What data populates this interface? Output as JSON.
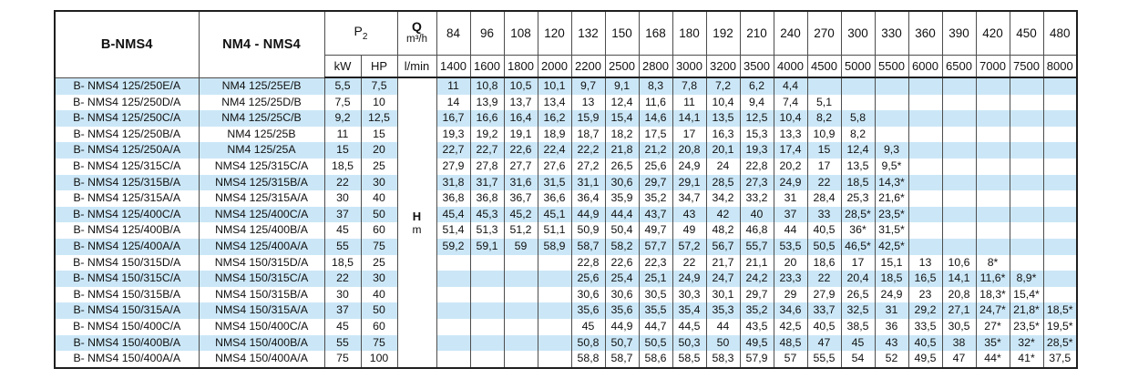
{
  "header": {
    "col_b_nms4": "B-NMS4",
    "col_nm4_nms4": "NM4 - NMS4",
    "p2_label": "P",
    "p2_sub": "2",
    "kw": "kW",
    "hp": "HP",
    "q_label": "Q",
    "q_unit": "m³/h",
    "lmin": "l/min",
    "flow_m3h": [
      "84",
      "96",
      "108",
      "120",
      "132",
      "150",
      "168",
      "180",
      "192",
      "210",
      "240",
      "270",
      "300",
      "330",
      "360",
      "390",
      "420",
      "450",
      "480"
    ],
    "flow_lmin": [
      "1400",
      "1600",
      "1800",
      "2000",
      "2200",
      "2500",
      "2800",
      "3000",
      "3200",
      "3500",
      "4000",
      "4500",
      "5000",
      "5500",
      "6000",
      "6500",
      "7000",
      "7500",
      "8000"
    ]
  },
  "body": {
    "head_label": "H",
    "head_unit": "m",
    "rows": [
      {
        "b": "B- NMS4 125/250E/A",
        "n": "NM4 125/25E/B",
        "kw": "5,5",
        "hp": "7,5",
        "v": [
          "11",
          "10,8",
          "10,5",
          "10,1",
          "9,7",
          "9,1",
          "8,3",
          "7,8",
          "7,2",
          "6,2",
          "4,4",
          "",
          "",
          "",
          "",
          "",
          "",
          "",
          ""
        ]
      },
      {
        "b": "B- NMS4 125/250D/A",
        "n": "NM4 125/25D/B",
        "kw": "7,5",
        "hp": "10",
        "v": [
          "14",
          "13,9",
          "13,7",
          "13,4",
          "13",
          "12,4",
          "11,6",
          "11",
          "10,4",
          "9,4",
          "7,4",
          "5,1",
          "",
          "",
          "",
          "",
          "",
          "",
          ""
        ]
      },
      {
        "b": "B- NMS4 125/250C/A",
        "n": "NM4 125/25C/B",
        "kw": "9,2",
        "hp": "12,5",
        "v": [
          "16,7",
          "16,6",
          "16,4",
          "16,2",
          "15,9",
          "15,4",
          "14,6",
          "14,1",
          "13,5",
          "12,5",
          "10,4",
          "8,2",
          "5,8",
          "",
          "",
          "",
          "",
          "",
          ""
        ]
      },
      {
        "b": "B- NMS4 125/250B/A",
        "n": "NM4 125/25B",
        "kw": "11",
        "hp": "15",
        "v": [
          "19,3",
          "19,2",
          "19,1",
          "18,9",
          "18,7",
          "18,2",
          "17,5",
          "17",
          "16,3",
          "15,3",
          "13,3",
          "10,9",
          "8,2",
          "",
          "",
          "",
          "",
          "",
          ""
        ]
      },
      {
        "b": "B- NMS4 125/250A/A",
        "n": "NM4 125/25A",
        "kw": "15",
        "hp": "20",
        "v": [
          "22,7",
          "22,7",
          "22,6",
          "22,4",
          "22,2",
          "21,8",
          "21,2",
          "20,8",
          "20,1",
          "19,3",
          "17,4",
          "15",
          "12,4",
          "9,3",
          "",
          "",
          "",
          "",
          ""
        ]
      },
      {
        "b": "B- NMS4 125/315C/A",
        "n": "NMS4 125/315C/A",
        "kw": "18,5",
        "hp": "25",
        "v": [
          "27,9",
          "27,8",
          "27,7",
          "27,6",
          "27,2",
          "26,5",
          "25,6",
          "24,9",
          "24",
          "22,8",
          "20,2",
          "17",
          "13,5",
          "9,5*",
          "",
          "",
          "",
          "",
          ""
        ]
      },
      {
        "b": "B- NMS4 125/315B/A",
        "n": "NMS4 125/315B/A",
        "kw": "22",
        "hp": "30",
        "v": [
          "31,8",
          "31,7",
          "31,6",
          "31,5",
          "31,1",
          "30,6",
          "29,7",
          "29,1",
          "28,5",
          "27,3",
          "24,9",
          "22",
          "18,5",
          "14,3*",
          "",
          "",
          "",
          "",
          ""
        ]
      },
      {
        "b": "B- NMS4 125/315A/A",
        "n": "NMS4 125/315A/A",
        "kw": "30",
        "hp": "40",
        "v": [
          "36,8",
          "36,8",
          "36,7",
          "36,6",
          "36,4",
          "35,9",
          "35,2",
          "34,7",
          "34,2",
          "33,2",
          "31",
          "28,4",
          "25,3",
          "21,6*",
          "",
          "",
          "",
          "",
          ""
        ]
      },
      {
        "b": "B- NMS4 125/400C/A",
        "n": "NMS4 125/400C/A",
        "kw": "37",
        "hp": "50",
        "v": [
          "45,4",
          "45,3",
          "45,2",
          "45,1",
          "44,9",
          "44,4",
          "43,7",
          "43",
          "42",
          "40",
          "37",
          "33",
          "28,5*",
          "23,5*",
          "",
          "",
          "",
          "",
          ""
        ]
      },
      {
        "b": "B- NMS4 125/400B/A",
        "n": "NMS4 125/400B/A",
        "kw": "45",
        "hp": "60",
        "v": [
          "51,4",
          "51,3",
          "51,2",
          "51,1",
          "50,9",
          "50,4",
          "49,7",
          "49",
          "48,2",
          "46,8",
          "44",
          "40,5",
          "36*",
          "31,5*",
          "",
          "",
          "",
          "",
          ""
        ]
      },
      {
        "b": "B- NMS4 125/400A/A",
        "n": "NMS4 125/400A/A",
        "kw": "55",
        "hp": "75",
        "v": [
          "59,2",
          "59,1",
          "59",
          "58,9",
          "58,7",
          "58,2",
          "57,7",
          "57,2",
          "56,7",
          "55,7",
          "53,5",
          "50,5",
          "46,5*",
          "42,5*",
          "",
          "",
          "",
          "",
          ""
        ]
      },
      {
        "b": "B- NMS4 150/315D/A",
        "n": "NMS4 150/315D/A",
        "kw": "18,5",
        "hp": "25",
        "v": [
          "",
          "",
          "",
          "",
          "22,8",
          "22,6",
          "22,3",
          "22",
          "21,7",
          "21,1",
          "20",
          "18,6",
          "17",
          "15,1",
          "13",
          "10,6",
          "8*",
          "",
          ""
        ]
      },
      {
        "b": "B- NMS4 150/315C/A",
        "n": "NMS4 150/315C/A",
        "kw": "22",
        "hp": "30",
        "v": [
          "",
          "",
          "",
          "",
          "25,6",
          "25,4",
          "25,1",
          "24,9",
          "24,7",
          "24,2",
          "23,3",
          "22",
          "20,4",
          "18,5",
          "16,5",
          "14,1",
          "11,6*",
          "8,9*",
          ""
        ]
      },
      {
        "b": "B- NMS4 150/315B/A",
        "n": "NMS4 150/315B/A",
        "kw": "30",
        "hp": "40",
        "v": [
          "",
          "",
          "",
          "",
          "30,6",
          "30,6",
          "30,5",
          "30,3",
          "30,1",
          "29,7",
          "29",
          "27,9",
          "26,5",
          "24,9",
          "23",
          "20,8",
          "18,3*",
          "15,4*",
          ""
        ]
      },
      {
        "b": "B- NMS4 150/315A/A",
        "n": "NMS4 150/315A/A",
        "kw": "37",
        "hp": "50",
        "v": [
          "",
          "",
          "",
          "",
          "35,6",
          "35,6",
          "35,5",
          "35,4",
          "35,3",
          "35,2",
          "34,6",
          "33,7",
          "32,5",
          "31",
          "29,2",
          "27,1",
          "24,7*",
          "21,8*",
          "18,5*"
        ]
      },
      {
        "b": "B- NMS4 150/400C/A",
        "n": "NMS4 150/400C/A",
        "kw": "45",
        "hp": "60",
        "v": [
          "",
          "",
          "",
          "",
          "45",
          "44,9",
          "44,7",
          "44,5",
          "44",
          "43,5",
          "42,5",
          "40,5",
          "38,5",
          "36",
          "33,5",
          "30,5",
          "27*",
          "23,5*",
          "19,5*"
        ]
      },
      {
        "b": "B- NMS4 150/400B/A",
        "n": "NMS4 150/400B/A",
        "kw": "55",
        "hp": "75",
        "v": [
          "",
          "",
          "",
          "",
          "50,8",
          "50,7",
          "50,5",
          "50,3",
          "50",
          "49,5",
          "48,5",
          "47",
          "45",
          "43",
          "40,5",
          "38",
          "35*",
          "32*",
          "28,5*"
        ]
      },
      {
        "b": "B- NMS4 150/400A/A",
        "n": "NMS4 150/400A/A",
        "kw": "75",
        "hp": "100",
        "v": [
          "",
          "",
          "",
          "",
          "58,8",
          "58,7",
          "58,6",
          "58,5",
          "58,3",
          "57,9",
          "57",
          "55,5",
          "54",
          "52",
          "49,5",
          "47",
          "44*",
          "41*",
          "37,5"
        ]
      }
    ]
  },
  "colors": {
    "row_highlight": "#cbe7f7",
    "grid_line": "#4d4d4d",
    "outer_border": "#1f1f1f",
    "text": "#111111",
    "paper": "#ffffff"
  }
}
